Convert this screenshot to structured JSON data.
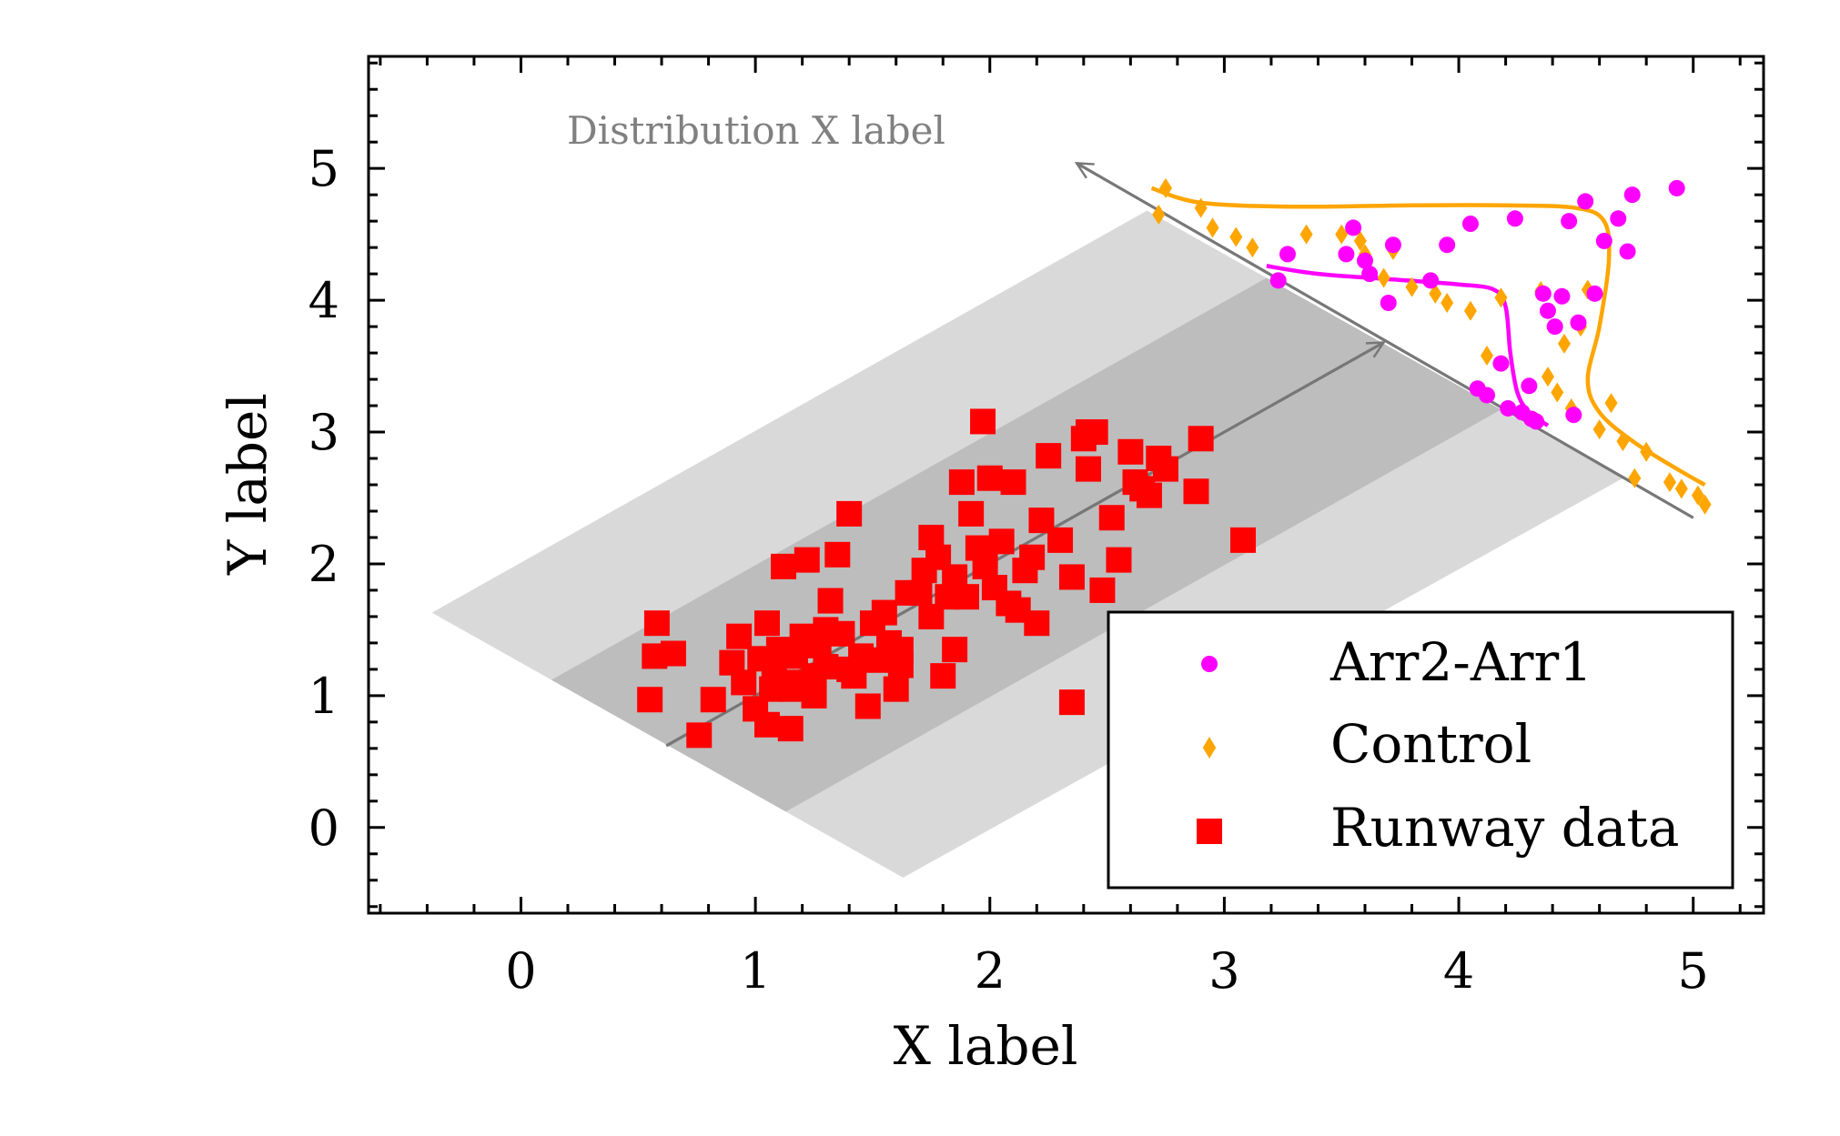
{
  "chart_data": {
    "type": "scatter",
    "title": "",
    "xlabel": "X label",
    "ylabel": "Y label",
    "xlim": [
      -0.65,
      5.3
    ],
    "ylim": [
      -0.65,
      5.85
    ],
    "xticks": [
      "0",
      "1",
      "2",
      "3",
      "4",
      "5"
    ],
    "yticks": [
      "0",
      "1",
      "2",
      "3",
      "4",
      "5"
    ],
    "xtick_values": [
      0,
      1,
      2,
      3,
      4,
      5
    ],
    "ytick_values": [
      0,
      1,
      2,
      3,
      4,
      5
    ],
    "grid": false,
    "legend_position": "lower-right",
    "annotation": "Distribution X label",
    "bands": [
      {
        "kind": "outer",
        "color": "#d9d9d9",
        "corners": [
          [
            -0.38,
            1.63
          ],
          [
            2.67,
            4.68
          ],
          [
            4.7,
            2.65
          ],
          [
            1.63,
            -0.38
          ]
        ]
      },
      {
        "kind": "inner",
        "color": "#bdbdbd",
        "corners": [
          [
            0.13,
            1.12
          ],
          [
            3.18,
            4.17
          ],
          [
            4.18,
            3.17
          ],
          [
            1.13,
            0.12
          ]
        ]
      }
    ],
    "regression_arrow": {
      "color": "#777777",
      "from": [
        0.62,
        0.62
      ],
      "to": [
        3.68,
        3.68
      ]
    },
    "distribution_axis": {
      "color": "#777777",
      "from": [
        5.0,
        2.35
      ],
      "to": [
        2.37,
        5.04
      ]
    },
    "series": [
      {
        "name": "Arr2-Arr1",
        "marker": "circle",
        "color": "#ff00ff",
        "x": [
          3.23,
          3.27,
          3.52,
          3.55,
          3.6,
          3.62,
          3.7,
          3.72,
          3.88,
          3.95,
          4.05,
          4.08,
          4.12,
          4.18,
          4.21,
          4.24,
          4.27,
          4.3,
          4.31,
          4.33,
          4.36,
          4.38,
          4.41,
          4.44,
          4.47,
          4.49,
          4.51,
          4.54,
          4.58,
          4.62,
          4.68,
          4.72,
          4.74,
          4.93
        ],
        "y": [
          4.15,
          4.35,
          4.35,
          4.55,
          4.3,
          4.2,
          3.98,
          4.42,
          4.15,
          4.42,
          4.58,
          3.33,
          3.28,
          3.52,
          3.18,
          4.62,
          3.15,
          3.35,
          3.1,
          3.08,
          4.05,
          3.92,
          3.8,
          4.03,
          4.6,
          3.13,
          3.83,
          4.75,
          4.05,
          4.45,
          4.62,
          4.37,
          4.8,
          4.85
        ]
      },
      {
        "name": "Control",
        "marker": "diamond",
        "color": "#ffa500",
        "x": [
          2.72,
          2.75,
          2.9,
          2.95,
          3.05,
          3.12,
          3.35,
          3.5,
          3.58,
          3.6,
          3.68,
          3.72,
          3.8,
          3.9,
          3.95,
          4.05,
          4.12,
          4.18,
          4.35,
          4.38,
          4.42,
          4.45,
          4.48,
          4.52,
          4.55,
          4.6,
          4.65,
          4.7,
          4.75,
          4.8,
          4.9,
          4.95,
          5.02,
          5.05
        ],
        "y": [
          4.65,
          4.85,
          4.7,
          4.55,
          4.48,
          4.4,
          4.5,
          4.5,
          4.45,
          4.35,
          4.17,
          4.38,
          4.1,
          4.05,
          3.98,
          3.92,
          3.58,
          4.02,
          4.07,
          3.42,
          3.3,
          3.67,
          3.18,
          3.8,
          4.08,
          3.02,
          3.22,
          2.93,
          2.65,
          2.85,
          2.62,
          2.57,
          2.52,
          2.45
        ]
      },
      {
        "name": "Runway data",
        "marker": "square",
        "color": "#ff0000",
        "x": [
          0.55,
          0.57,
          0.58,
          0.65,
          0.76,
          0.82,
          0.9,
          0.93,
          0.95,
          1.0,
          1.02,
          1.05,
          1.07,
          1.08,
          1.1,
          1.12,
          1.15,
          1.17,
          1.18,
          1.2,
          1.22,
          1.25,
          1.27,
          1.3,
          1.32,
          1.35,
          1.37,
          1.4,
          1.42,
          1.45,
          1.48,
          1.5,
          1.52,
          1.55,
          1.57,
          1.6,
          1.62,
          1.65,
          1.7,
          1.72,
          1.75,
          1.78,
          1.8,
          1.82,
          1.85,
          1.88,
          1.9,
          1.92,
          1.95,
          1.98,
          2.0,
          2.02,
          2.05,
          2.08,
          2.1,
          2.12,
          2.15,
          2.18,
          2.2,
          2.22,
          2.25,
          2.3,
          2.35,
          2.4,
          2.42,
          2.45,
          2.48,
          2.52,
          2.55,
          2.6,
          2.62,
          2.65,
          2.68,
          2.72,
          2.75,
          2.88,
          2.9,
          3.08,
          1.97,
          2.42,
          1.15,
          1.3,
          1.4,
          1.62,
          1.75,
          1.85,
          2.35,
          1.25,
          1.05
        ],
        "y": [
          0.97,
          1.3,
          1.55,
          1.32,
          0.7,
          0.97,
          1.25,
          1.45,
          1.1,
          0.9,
          1.28,
          0.78,
          1.05,
          1.2,
          1.35,
          1.98,
          0.75,
          1.3,
          1.1,
          1.45,
          2.03,
          1.0,
          1.38,
          1.22,
          1.72,
          2.07,
          1.47,
          2.38,
          1.15,
          1.3,
          0.92,
          1.55,
          1.27,
          1.63,
          1.4,
          1.05,
          1.23,
          1.78,
          1.78,
          1.95,
          2.2,
          2.05,
          1.15,
          1.75,
          1.35,
          2.62,
          1.75,
          2.38,
          2.12,
          1.98,
          2.65,
          1.82,
          2.17,
          1.7,
          2.62,
          1.65,
          1.95,
          2.05,
          1.55,
          2.33,
          2.82,
          2.18,
          1.9,
          2.95,
          2.72,
          3.0,
          1.8,
          2.35,
          2.03,
          2.85,
          2.62,
          2.57,
          2.52,
          2.8,
          2.72,
          2.55,
          2.95,
          2.18,
          3.08,
          3.0,
          1.05,
          1.5,
          1.2,
          1.35,
          1.6,
          1.9,
          0.95,
          1.15,
          1.55
        ]
      }
    ],
    "fit_curves": [
      {
        "series": "Arr2-Arr1",
        "color": "#ff00ff",
        "points": [
          [
            3.18,
            4.26
          ],
          [
            3.4,
            4.2
          ],
          [
            3.7,
            4.16
          ],
          [
            4.0,
            4.12
          ],
          [
            4.15,
            4.08
          ],
          [
            4.2,
            3.95
          ],
          [
            4.22,
            3.6
          ],
          [
            4.25,
            3.3
          ],
          [
            4.3,
            3.15
          ],
          [
            4.38,
            3.05
          ]
        ]
      },
      {
        "series": "Control",
        "color": "#ffa500",
        "points": [
          [
            2.69,
            4.85
          ],
          [
            2.9,
            4.74
          ],
          [
            3.3,
            4.71
          ],
          [
            3.8,
            4.72
          ],
          [
            4.2,
            4.72
          ],
          [
            4.5,
            4.7
          ],
          [
            4.62,
            4.6
          ],
          [
            4.64,
            4.3
          ],
          [
            4.6,
            3.8
          ],
          [
            4.55,
            3.4
          ],
          [
            4.6,
            3.15
          ],
          [
            4.75,
            2.92
          ],
          [
            4.95,
            2.7
          ],
          [
            5.05,
            2.6
          ]
        ]
      }
    ]
  }
}
